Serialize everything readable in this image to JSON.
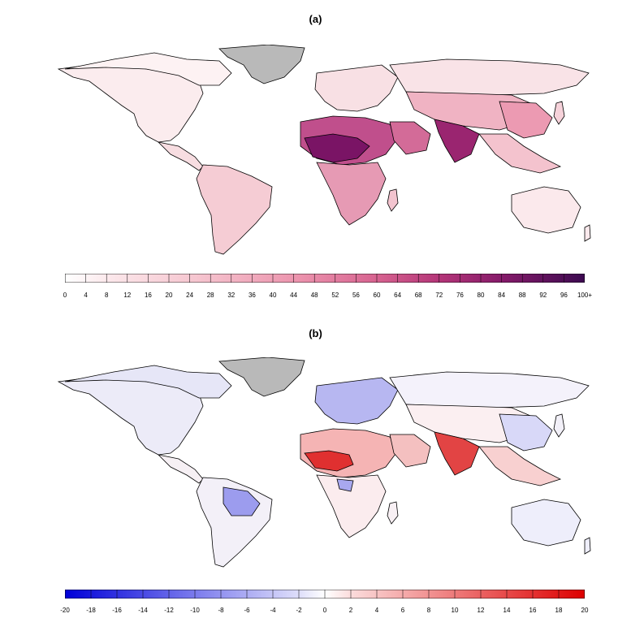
{
  "panel_a": {
    "label": "(a)",
    "colorbar": {
      "ticks": [
        "0",
        "4",
        "8",
        "12",
        "16",
        "20",
        "24",
        "28",
        "32",
        "36",
        "40",
        "44",
        "48",
        "52",
        "56",
        "60",
        "64",
        "68",
        "72",
        "76",
        "80",
        "84",
        "88",
        "92",
        "96",
        "100+"
      ],
      "colors": [
        "#ffffff",
        "#fdecec",
        "#f9d6da",
        "#f4bcc6",
        "#ee9fb3",
        "#e6829e",
        "#d8608a",
        "#c64580",
        "#ad2f76",
        "#8e1d6a",
        "#6d1060",
        "#4a0a52"
      ],
      "range": [
        0,
        100
      ]
    }
  },
  "panel_b": {
    "label": "(b)",
    "colorbar": {
      "ticks": [
        "-20",
        "-18",
        "-16",
        "-14",
        "-12",
        "-10",
        "-8",
        "-6",
        "-4",
        "-2",
        "0",
        "2",
        "4",
        "6",
        "8",
        "10",
        "12",
        "14",
        "16",
        "18",
        "20"
      ],
      "colors": [
        "#0000d8",
        "#2b2be0",
        "#5a5ae8",
        "#8585ef",
        "#b0b0f5",
        "#d8d8fa",
        "#ffffff",
        "#fbd6d6",
        "#f5a9a9",
        "#ee7a7a",
        "#e64848",
        "#dd0000"
      ],
      "range": [
        -20,
        20
      ]
    }
  },
  "colors": {
    "land_outline": "#000000",
    "no_data": "#b9b9b9",
    "panel_a_base": "#fbe9ec",
    "panel_b_base": "#f2f2fb"
  }
}
